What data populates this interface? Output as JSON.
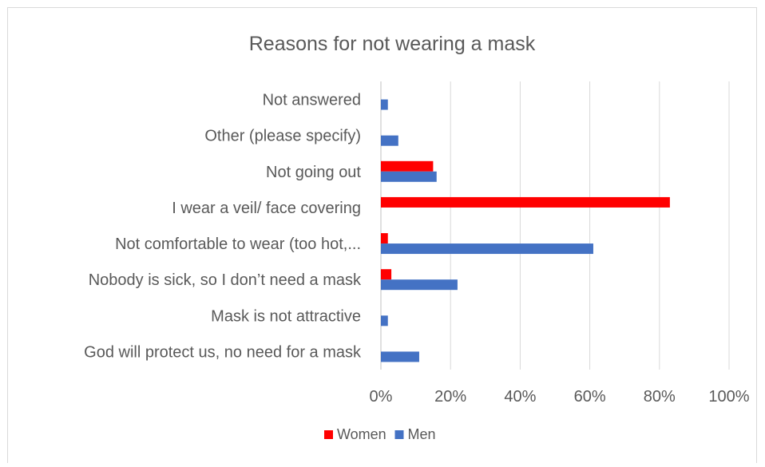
{
  "chart_data": {
    "type": "bar",
    "orientation": "horizontal",
    "title": "Reasons for not wearing a mask",
    "categories": [
      "Not answered",
      "Other (please specify)",
      "Not going out",
      "I wear a veil/ face covering",
      "Not comfortable to wear (too hot,...",
      "Nobody is sick, so I don’t need a mask",
      "Mask is not attractive",
      "God will protect us, no need for a mask"
    ],
    "series": [
      {
        "name": "Women",
        "color": "#ff0000",
        "values": [
          0,
          0,
          15,
          83,
          2,
          3,
          0,
          0
        ]
      },
      {
        "name": "Men",
        "color": "#4472c4",
        "values": [
          2,
          5,
          16,
          0,
          61,
          22,
          2,
          11
        ]
      }
    ],
    "xlim": [
      0,
      100
    ],
    "x_ticks": [
      "0%",
      "20%",
      "40%",
      "60%",
      "80%",
      "100%"
    ],
    "grid": true,
    "legend_position": "bottom"
  }
}
